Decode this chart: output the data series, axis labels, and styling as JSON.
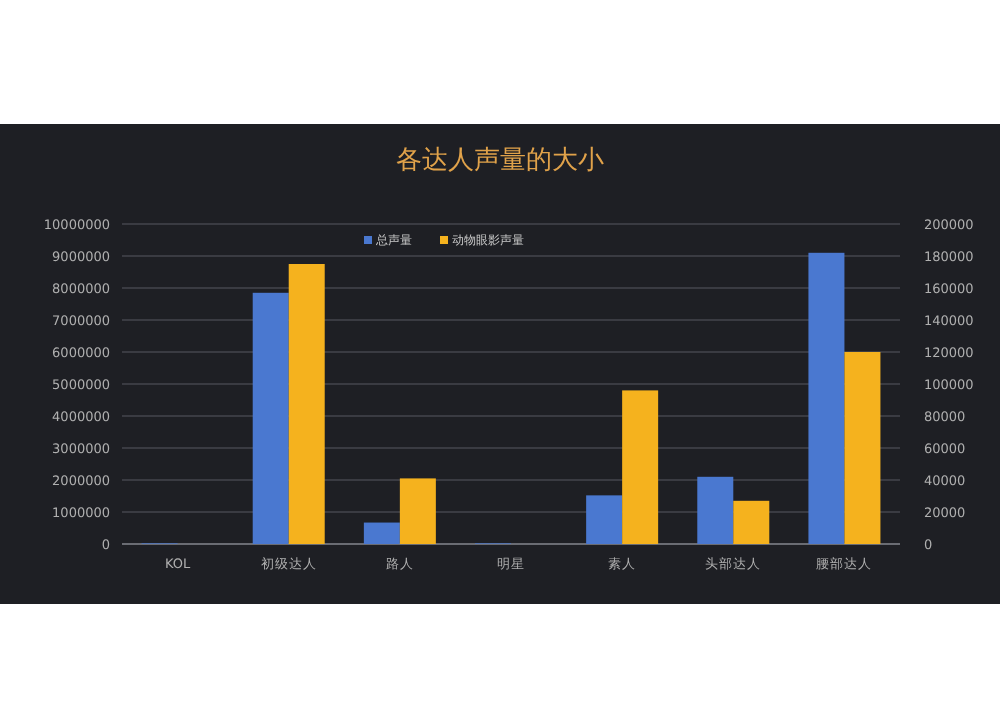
{
  "chart_data": {
    "type": "bar",
    "title": "各达人声量的大小",
    "categories": [
      "KOL",
      "初级达人",
      "路人",
      "明星",
      "素人",
      "头部达人",
      "腰部达人"
    ],
    "series": [
      {
        "name": "总声量",
        "color": "#4a78d0",
        "values": [
          20000,
          7850000,
          670000,
          20000,
          1520000,
          2100000,
          9100000
        ]
      },
      {
        "name": "动物眼影声量",
        "color": "#f5b21e",
        "axis": "y2",
        "values": [
          0,
          175000,
          41000,
          0,
          96000,
          27000,
          120000
        ]
      }
    ],
    "ylim": [
      0,
      10000000
    ],
    "yticks": [
      0,
      1000000,
      2000000,
      3000000,
      4000000,
      5000000,
      6000000,
      7000000,
      8000000,
      9000000,
      10000000
    ],
    "y2lim": [
      0,
      200000
    ],
    "y2ticks": [
      0,
      20000,
      40000,
      60000,
      80000,
      100000,
      120000,
      140000,
      160000,
      180000,
      200000
    ],
    "grid": "y",
    "legend": "top"
  }
}
